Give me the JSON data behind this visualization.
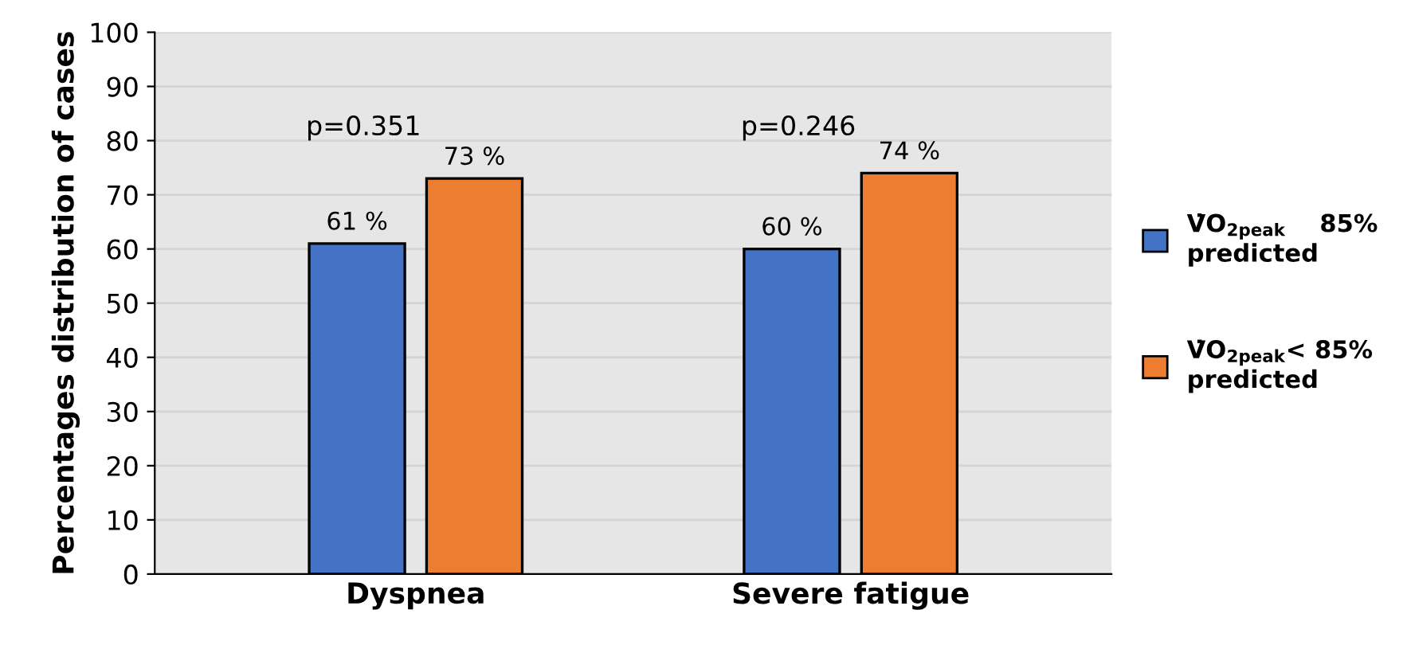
{
  "chart_data": {
    "type": "bar",
    "ylabel": "Percentages distribution of cases",
    "categories": [
      "Dyspnea",
      "Severe fatigue"
    ],
    "series": [
      {
        "name": "V̇O$_{2peak}$    85% predicted",
        "color": "#4472c4",
        "values": [
          61,
          60
        ],
        "value_labels": [
          "61 %",
          "60 %"
        ]
      },
      {
        "name": "V̇O$_{2peak}$< 85% predicted",
        "color": "#ed7d31",
        "values": [
          73,
          74
        ],
        "value_labels": [
          "73 %",
          "74 %"
        ]
      }
    ],
    "annotations": [
      "p=0.351",
      "p=0.246"
    ],
    "ylim": [
      0,
      100
    ],
    "yticks": [
      0,
      10,
      20,
      30,
      40,
      50,
      60,
      70,
      80,
      90,
      100
    ],
    "grid": "y",
    "legend": "right"
  }
}
